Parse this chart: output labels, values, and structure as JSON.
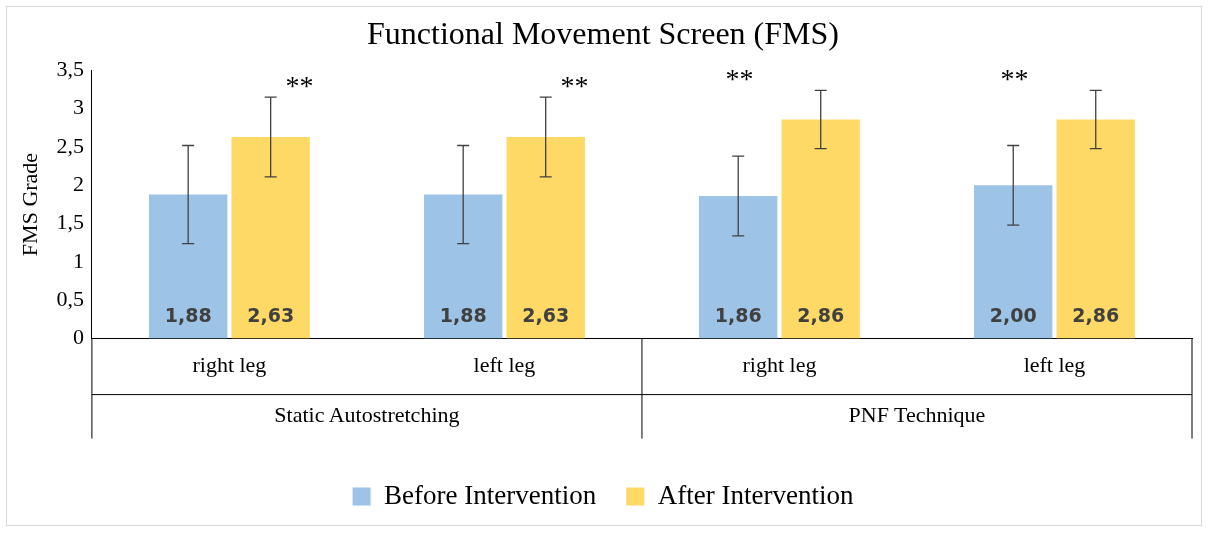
{
  "chart_data": {
    "type": "bar",
    "title": "Functional Movement Screen (FMS)",
    "ylabel": "FMS Grade",
    "categories": [
      "right leg",
      "left leg",
      "right leg",
      "left leg"
    ],
    "series": [
      {
        "name": "Before Intervention",
        "color": "#9dc3e6",
        "values": [
          1.88,
          1.88,
          1.86,
          2.0
        ],
        "errors": [
          0.64,
          0.64,
          0.52,
          0.52
        ],
        "value_labels": [
          "1,88",
          "1,88",
          "1,86",
          "2,00"
        ]
      },
      {
        "name": "After Intervention",
        "color": "#ffd966",
        "values": [
          2.63,
          2.63,
          2.86,
          2.86
        ],
        "errors": [
          0.52,
          0.52,
          0.38,
          0.38
        ],
        "value_labels": [
          "2,63",
          "2,63",
          "2,86",
          "2,86"
        ]
      }
    ],
    "ylim": [
      0,
      3.5
    ],
    "yticks": [
      0,
      {
        "value": 0.5,
        "label": "0,5"
      },
      1,
      {
        "value": 1.5,
        "label": "1,5"
      },
      2,
      {
        "value": 2.5,
        "label": "2,5"
      },
      3,
      {
        "value": 3.5,
        "label": "3,5"
      }
    ],
    "grid": false,
    "legend": "bottom",
    "annotations": [
      "**",
      "**",
      "**",
      "**",
      "Static Autostretching",
      "PNF Technique"
    ]
  }
}
